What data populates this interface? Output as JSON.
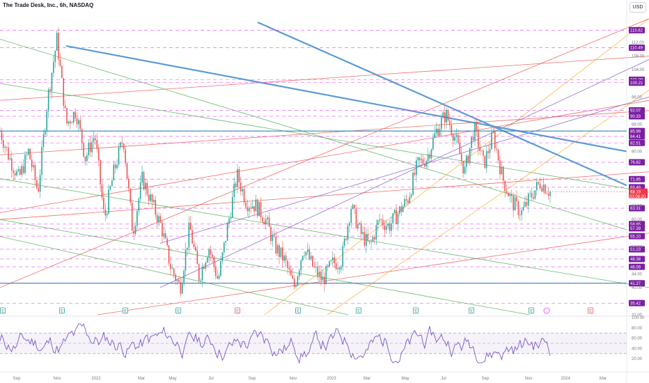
{
  "header": {
    "title": "The Trade Desk, Inc., 6h, NASDAQ",
    "currency": "USD"
  },
  "colors": {
    "up": "#26a69a",
    "down": "#ef5350",
    "level": "#e040fb",
    "rsi": "#7e57c2",
    "label_bg": "#7b1fa2",
    "trend": "#5b9bd5"
  },
  "chart_data": [
    {
      "type": "candlestick",
      "title": "The Trade Desk, Inc., 6h, NASDAQ",
      "x_ticks": [
        "Sep",
        "Nov",
        "2022",
        "Mar",
        "May",
        "Jul",
        "Sep",
        "Nov",
        "2023",
        "Mar",
        "May",
        "Jul",
        "Sep",
        "Nov",
        "2024",
        "Mar"
      ],
      "y_ticks": [
        112.0,
        108.0,
        104.0,
        96.0,
        88.0,
        80.0,
        64.0,
        60.0,
        52.0,
        44.0,
        40.0,
        32.0
      ],
      "ylim": [
        32,
        120
      ],
      "levels": [
        115.62,
        110.49,
        101.08,
        100.21,
        92.07,
        90.33,
        85.99,
        84.41,
        82.51,
        76.82,
        71.85,
        69.48,
        63.31,
        58.65,
        57.39,
        55.1,
        51.23,
        48.38,
        46.09,
        41.27,
        35.42
      ],
      "current_price": {
        "value": 68.19,
        "countdown": "03:08:20"
      },
      "close_path": [
        [
          "Aug",
          86
        ],
        [
          "Sep",
          78
        ],
        [
          "Sep",
          72
        ],
        [
          "Oct",
          80
        ],
        [
          "Oct",
          68
        ],
        [
          "Nov",
          95
        ],
        [
          "Nov",
          113
        ],
        [
          "Nov",
          88
        ],
        [
          "Dec",
          92
        ],
        [
          "Dec",
          78
        ],
        [
          "2022",
          85
        ],
        [
          "Jan",
          60
        ],
        [
          "Jan",
          74
        ],
        [
          "Feb",
          84
        ],
        [
          "Feb",
          56
        ],
        [
          "Mar",
          72
        ],
        [
          "Mar",
          65
        ],
        [
          "Apr",
          58
        ],
        [
          "Apr",
          46
        ],
        [
          "May",
          40
        ],
        [
          "May",
          58
        ],
        [
          "Jun",
          43
        ],
        [
          "Jun",
          52
        ],
        [
          "Jul",
          42
        ],
        [
          "Jul",
          58
        ],
        [
          "Aug",
          73
        ],
        [
          "Aug",
          65
        ],
        [
          "Sep",
          64
        ],
        [
          "Sep",
          60
        ],
        [
          "Oct",
          52
        ],
        [
          "Oct",
          48
        ],
        [
          "Nov",
          40
        ],
        [
          "Nov",
          52
        ],
        [
          "Dec",
          46
        ],
        [
          "Dec",
          42
        ],
        [
          "2023",
          47
        ],
        [
          "Jan",
          48
        ],
        [
          "Feb",
          64
        ],
        [
          "Feb",
          56
        ],
        [
          "Mar",
          52
        ],
        [
          "Mar",
          60
        ],
        [
          "Apr",
          58
        ],
        [
          "May",
          62
        ],
        [
          "May",
          66
        ],
        [
          "Jun",
          76
        ],
        [
          "Jun",
          78
        ],
        [
          "Jul",
          86
        ],
        [
          "Jul",
          91
        ],
        [
          "Aug",
          84
        ],
        [
          "Aug",
          74
        ],
        [
          "Sep",
          87
        ],
        [
          "Sep",
          76
        ],
        [
          "Oct",
          85
        ],
        [
          "Oct",
          72
        ],
        [
          "Oct",
          65
        ],
        [
          "Nov",
          62
        ],
        [
          "Nov",
          67
        ],
        [
          "Nov",
          71
        ],
        [
          "Nov",
          68
        ]
      ],
      "rsi": {
        "y_ticks": [
          100.0,
          80.0,
          60.0,
          40.0,
          20.0
        ],
        "upper": 70,
        "lower": 30
      }
    }
  ]
}
